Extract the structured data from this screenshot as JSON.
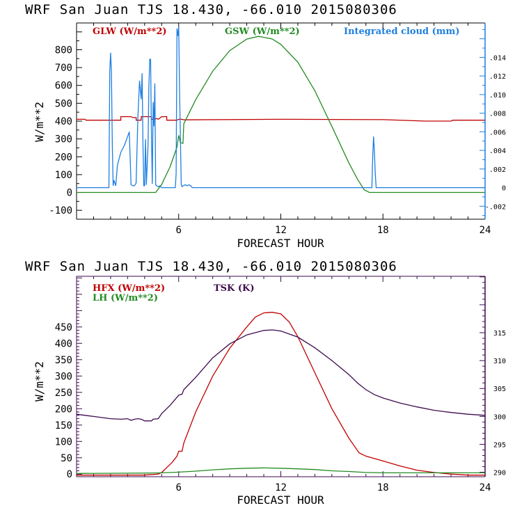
{
  "chart_data": [
    {
      "type": "line",
      "title": "WRF  San Juan TJS  18.430, -66.010  2015080306",
      "xlabel": "FORECAST HOUR",
      "ylabel": "W/m**2",
      "xlim": [
        0,
        24
      ],
      "ylim": [
        -150,
        950
      ],
      "x_ticks": [
        6,
        12,
        18,
        24
      ],
      "y_ticks": [
        -100,
        0,
        100,
        200,
        300,
        400,
        500,
        600,
        700,
        800
      ],
      "y_tick_labels": [
        "-100",
        "0",
        "100",
        "200",
        "300",
        "400",
        "500",
        "600",
        "700",
        "800"
      ],
      "y2label": "Integrated cloud (mm)",
      "y2lim": [
        -0.0034,
        0.0177
      ],
      "y2_ticks": [
        -0.002,
        0,
        0.002,
        0.004,
        0.006,
        0.008,
        0.01,
        0.012,
        0.014
      ],
      "y2_tick_labels": [
        "-.002",
        "0",
        ".002",
        ".004",
        ".006",
        ".008",
        ".010",
        ".012",
        ".014"
      ],
      "legend": [
        {
          "label": "GLW (W/m**2)",
          "color": "#c00000"
        },
        {
          "label": "GSW (W/m**2)",
          "color": "#228b22"
        },
        {
          "label": "Integrated cloud (mm)",
          "color": "#1e7fe0"
        }
      ],
      "axis_color": "#000000",
      "right_axis_color": "#1e7fe0",
      "series": [
        {
          "name": "GLW",
          "axis": "left",
          "color": "#c00000",
          "x": [
            0,
            0.5,
            0.55,
            2.6,
            2.6,
            3.2,
            3.3,
            3.5,
            3.5,
            3.8,
            3.8,
            4.4,
            4.4,
            4.6,
            4.7,
            4.8,
            5.0,
            5.3,
            5.3,
            5.9,
            6.0,
            6.2,
            6.3,
            12,
            18,
            20.5,
            20.6,
            22,
            22.1,
            24
          ],
          "y": [
            410,
            410,
            405,
            405,
            425,
            425,
            420,
            420,
            405,
            405,
            425,
            425,
            410,
            410,
            415,
            410,
            425,
            425,
            405,
            405,
            410,
            410,
            407,
            410,
            408,
            400,
            400,
            400,
            405,
            405
          ]
        },
        {
          "name": "GSW",
          "axis": "left",
          "color": "#228b22",
          "x": [
            0,
            4.65,
            5.0,
            5.5,
            5.9,
            6.0,
            6.1,
            6.25,
            6.3,
            7,
            8,
            9,
            10,
            10.7,
            11.5,
            12,
            13,
            14,
            15,
            16,
            16.5,
            16.9,
            17.2,
            24
          ],
          "y": [
            0,
            0,
            45,
            145,
            255,
            320,
            280,
            275,
            385,
            520,
            680,
            795,
            860,
            875,
            860,
            830,
            730,
            570,
            370,
            165,
            75,
            15,
            0,
            0
          ]
        },
        {
          "name": "Integrated cloud",
          "axis": "right",
          "color": "#1e7fe0",
          "x": [
            0,
            1.9,
            1.95,
            2.0,
            2.05,
            2.1,
            2.15,
            2.2,
            2.3,
            2.4,
            2.6,
            2.8,
            3.0,
            3.1,
            3.2,
            3.3,
            3.4,
            3.5,
            3.6,
            3.7,
            3.8,
            3.85,
            3.9,
            3.95,
            4.0,
            4.05,
            4.1,
            4.2,
            4.25,
            4.3,
            4.35,
            4.4,
            4.45,
            4.5,
            4.55,
            4.6,
            4.65,
            4.7,
            4.8,
            4.9,
            5.0,
            5.8,
            5.85,
            5.9,
            5.95,
            6.0,
            6.05,
            6.1,
            6.15,
            6.2,
            6.25,
            6.4,
            6.5,
            6.6,
            6.7,
            6.8,
            7.0,
            17.35,
            17.4,
            17.45,
            17.5,
            17.55,
            17.6,
            24
          ],
          "y": [
            0,
            0,
            0.0125,
            0.0145,
            0.0125,
            0.0045,
            0.0002,
            0.0008,
            0.0002,
            0.0024,
            0.0038,
            0.0045,
            0.0055,
            0.006,
            0.0003,
            0.0002,
            0.0002,
            0.0005,
            0.0075,
            0.0115,
            0.0095,
            0.0123,
            0.0048,
            0.0002,
            0.0002,
            0.0052,
            0.0003,
            0.0045,
            0.0108,
            0.0138,
            0.0138,
            0.0058,
            0.0004,
            0.0092,
            0.0066,
            0.0112,
            0.0003,
            0.0002,
            0.0001,
            0.0002,
            0,
            0,
            0.0015,
            0.0171,
            0.0163,
            0.0173,
            0.0104,
            0.0055,
            0.0003,
            0.0001,
            0.0002,
            0.0003,
            0.0002,
            0.0003,
            0.0002,
            0,
            0,
            0,
            0.0035,
            0.0055,
            0.0038,
            0.0015,
            0,
            0
          ]
        }
      ]
    },
    {
      "type": "line",
      "title": "WRF  San Juan TJS  18.430, -66.010  2015080306",
      "xlabel": "FORECAST HOUR",
      "ylabel": "W/m**2",
      "xlim": [
        0,
        24
      ],
      "ylim": [
        -8,
        605
      ],
      "x_ticks": [
        6,
        12,
        18,
        24
      ],
      "y_ticks": [
        0,
        50,
        100,
        150,
        200,
        250,
        300,
        350,
        400,
        450
      ],
      "y_tick_labels": [
        "0",
        "50",
        "100",
        "150",
        "200",
        "250",
        "300",
        "350",
        "400",
        "450"
      ],
      "y2label": "TSK (K)",
      "y2lim": [
        289.2,
        325.1
      ],
      "y2_ticks": [
        290,
        295,
        300,
        305,
        310,
        315
      ],
      "y2_tick_labels": [
        "290",
        "295",
        "300",
        "305",
        "310",
        "315"
      ],
      "legend": [
        {
          "label": "HFX (W/m**2)",
          "color": "#c00000"
        },
        {
          "label": "LH  (W/m**2)",
          "color": "#228b22"
        },
        {
          "label": "TSK (K)",
          "color": "#3d0a4f"
        }
      ],
      "axis_color": "#3d0a4f",
      "right_axis_color": "#3d0a4f",
      "series": [
        {
          "name": "HFX",
          "axis": "left",
          "color": "#c00000",
          "x": [
            0,
            2,
            4,
            4.8,
            5.0,
            5.3,
            5.6,
            5.9,
            6.0,
            6.2,
            6.3,
            7,
            8,
            9,
            10,
            10.5,
            11,
            11.5,
            12,
            12.5,
            13,
            14,
            15,
            16,
            16.6,
            17,
            18,
            19,
            20,
            21,
            22,
            23,
            24
          ],
          "y": [
            -3,
            -3,
            -3,
            0,
            5,
            20,
            35,
            55,
            70,
            70,
            95,
            190,
            300,
            385,
            450,
            480,
            493,
            495,
            490,
            465,
            420,
            310,
            200,
            110,
            65,
            55,
            40,
            25,
            12,
            5,
            0,
            -3,
            -3
          ]
        },
        {
          "name": "LH",
          "axis": "left",
          "color": "#228b22",
          "x": [
            0,
            4,
            5,
            6,
            7,
            8,
            9,
            10,
            11,
            12,
            13,
            14,
            15,
            16,
            17,
            18,
            20,
            24
          ],
          "y": [
            2,
            3,
            4,
            6,
            9,
            13,
            16,
            18,
            19,
            18,
            16,
            14,
            10,
            8,
            5,
            4,
            4,
            4
          ]
        },
        {
          "name": "TSK",
          "axis": "right",
          "color": "#3d0a4f",
          "x": [
            0,
            1,
            2,
            2.6,
            3.0,
            3.2,
            3.4,
            3.6,
            3.8,
            4.0,
            4.4,
            4.5,
            4.8,
            5.0,
            5.5,
            6.0,
            6.2,
            6.3,
            7,
            8,
            9,
            10,
            11,
            11.5,
            12,
            13,
            14,
            15,
            16,
            16.5,
            17,
            17.5,
            18,
            19,
            20,
            21,
            22,
            23,
            24
          ],
          "y": [
            300.4,
            300.0,
            299.6,
            299.5,
            299.6,
            299.3,
            299.5,
            299.6,
            299.5,
            299.2,
            299.2,
            299.5,
            299.6,
            300.5,
            302.0,
            303.8,
            304.0,
            304.8,
            307.0,
            310.5,
            313.0,
            314.6,
            315.4,
            315.5,
            315.3,
            314.2,
            312.3,
            310.0,
            307.5,
            306.0,
            304.8,
            303.9,
            303.3,
            302.4,
            301.7,
            301.1,
            300.7,
            300.4,
            300.2
          ]
        }
      ]
    }
  ]
}
